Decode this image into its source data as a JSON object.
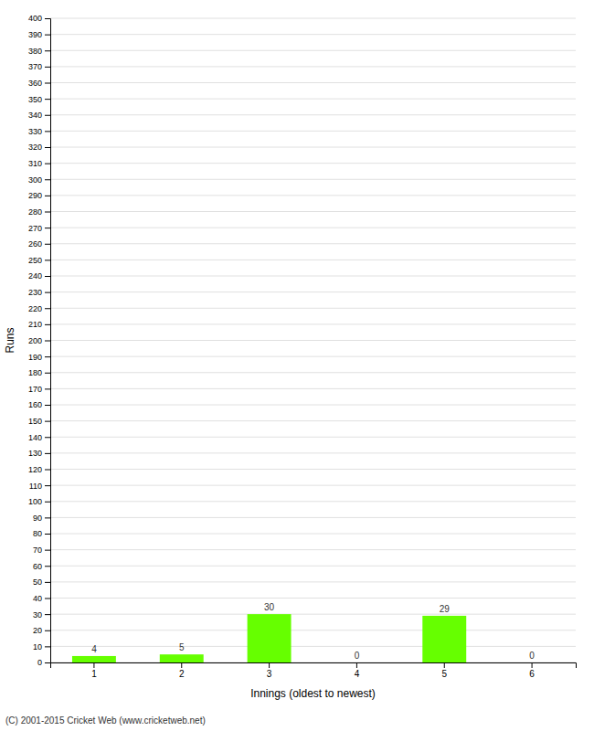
{
  "chart_data": {
    "type": "bar",
    "categories": [
      1,
      2,
      3,
      4,
      5,
      6
    ],
    "values": [
      4,
      5,
      30,
      0,
      29,
      0
    ],
    "color": "#66ff00",
    "xlabel": "Innings (oldest to newest)",
    "ylabel": "Runs",
    "ylim": [
      0,
      400
    ],
    "yticks": [
      0,
      10,
      20,
      30,
      40,
      50,
      60,
      70,
      80,
      90,
      100,
      110,
      120,
      130,
      140,
      150,
      160,
      170,
      180,
      190,
      200,
      210,
      220,
      230,
      240,
      250,
      260,
      270,
      280,
      290,
      300,
      310,
      320,
      330,
      340,
      350,
      360,
      370,
      380,
      390,
      400
    ],
    "grid": true,
    "data_labels": true,
    "annotations": [
      "(C) 2001-2015 Cricket Web (www.cricketweb.net)"
    ]
  }
}
